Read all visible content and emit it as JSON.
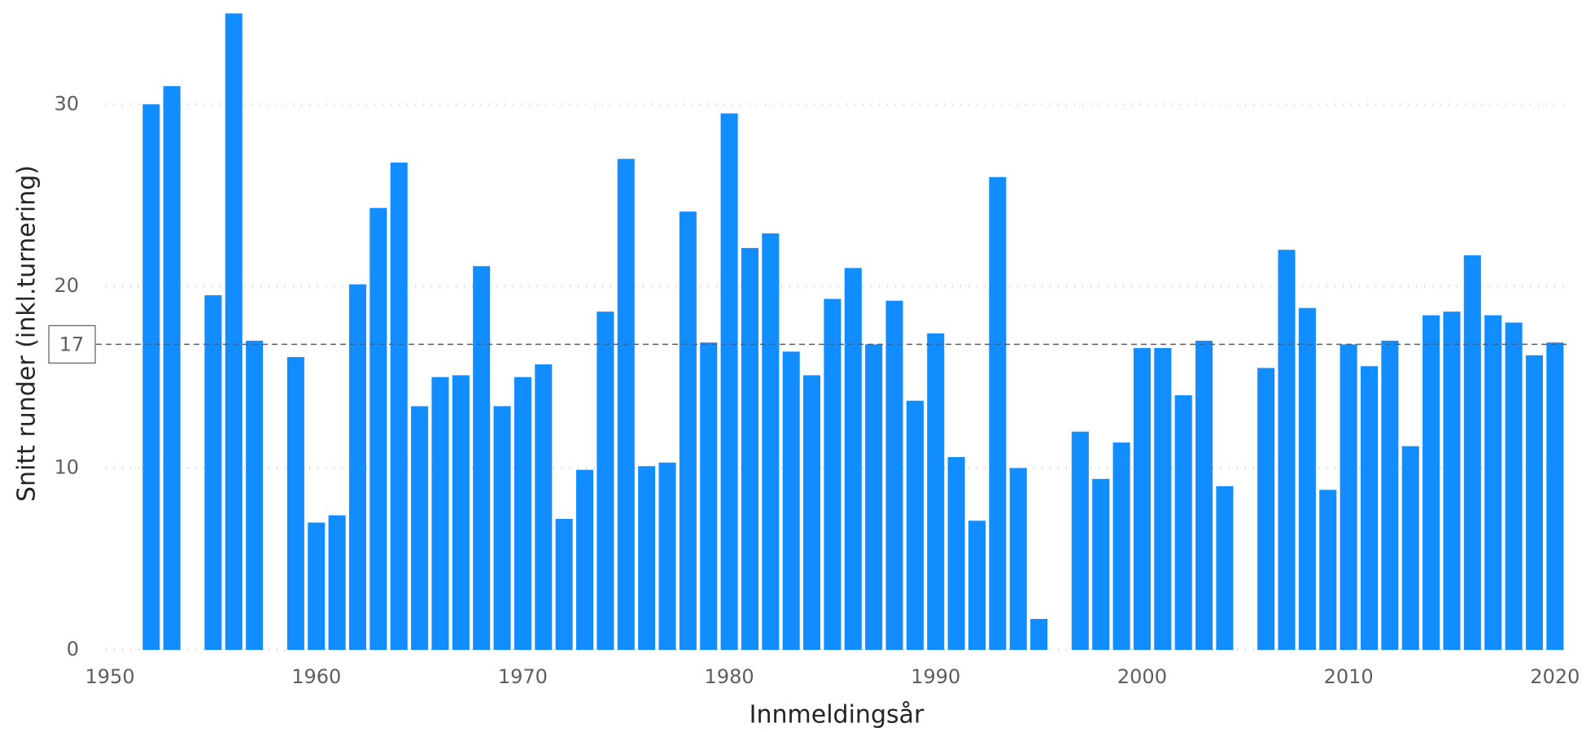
{
  "chart_data": {
    "type": "bar",
    "x_label": "Innmeldingsår",
    "y_label": "Snitt runder (inkl.turnering)",
    "x": [
      1952,
      1953,
      1955,
      1956,
      1957,
      1959,
      1960,
      1961,
      1962,
      1963,
      1964,
      1965,
      1966,
      1967,
      1968,
      1969,
      1970,
      1971,
      1972,
      1973,
      1974,
      1975,
      1976,
      1977,
      1978,
      1979,
      1980,
      1981,
      1982,
      1983,
      1984,
      1985,
      1986,
      1987,
      1988,
      1989,
      1990,
      1991,
      1992,
      1993,
      1994,
      1995,
      1997,
      1998,
      1999,
      2000,
      2001,
      2002,
      2003,
      2004,
      2006,
      2007,
      2008,
      2009,
      2010,
      2011,
      2012,
      2013,
      2014,
      2015,
      2016,
      2017,
      2018,
      2019,
      2020
    ],
    "values": [
      30.0,
      31.0,
      19.5,
      35.0,
      17.0,
      16.1,
      7.0,
      7.4,
      20.1,
      24.3,
      26.8,
      13.4,
      15.0,
      15.1,
      21.1,
      13.4,
      15.0,
      15.7,
      7.2,
      9.9,
      18.6,
      27.0,
      10.1,
      10.3,
      24.1,
      16.9,
      29.5,
      22.1,
      22.9,
      16.4,
      15.1,
      19.3,
      21.0,
      16.8,
      19.2,
      13.7,
      17.4,
      10.6,
      7.1,
      26.0,
      10.0,
      1.7,
      12.0,
      9.4,
      11.4,
      16.6,
      16.6,
      14.0,
      17.0,
      9.0,
      15.5,
      22.0,
      18.8,
      8.8,
      16.8,
      15.6,
      17.0,
      11.2,
      18.4,
      18.6,
      21.7,
      18.4,
      18.0,
      16.2,
      16.9
    ],
    "color": "#118dff",
    "xlim": [
      1949.8,
      2020.6
    ],
    "xticks": [
      1950,
      1960,
      1970,
      1980,
      1990,
      2000,
      2010,
      2020
    ],
    "ylim": [
      0,
      35.2
    ],
    "yticks": [
      0,
      10,
      20,
      30
    ],
    "grid": true,
    "reference_line": {
      "value": 16.8,
      "label": "17"
    }
  }
}
